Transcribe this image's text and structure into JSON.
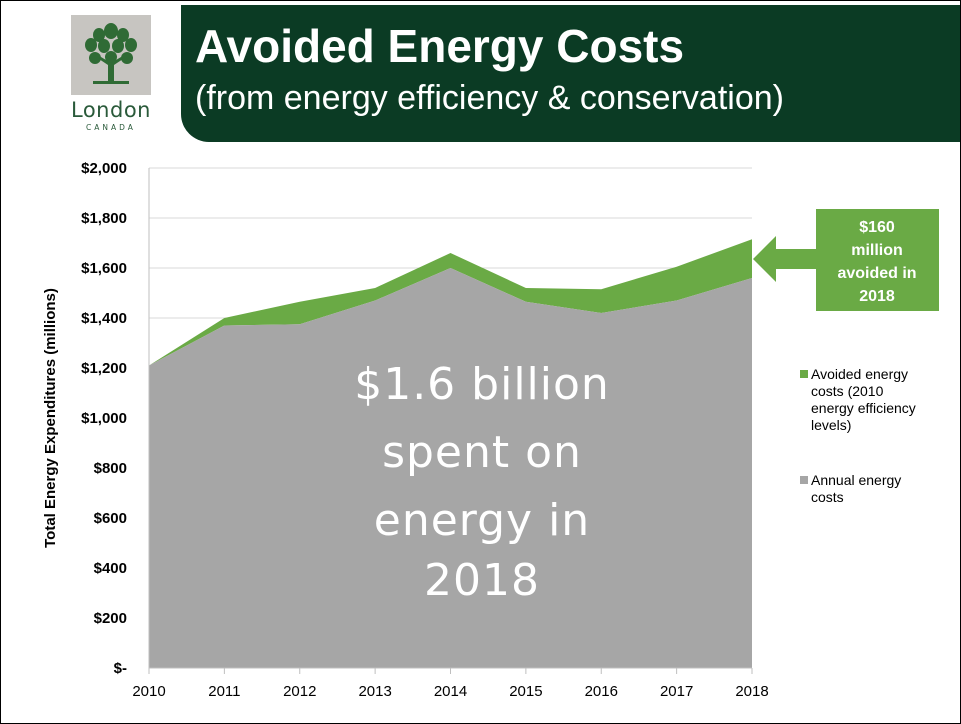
{
  "header": {
    "title": "Avoided Energy Costs",
    "subtitle": "(from energy efficiency & conservation)"
  },
  "logo": {
    "word": "London",
    "sub": "CANADA",
    "icon": "tree-icon",
    "box_color": "#c7c5c1",
    "tree_color": "#2f6b35"
  },
  "colors": {
    "header_bg": "#0b3b24",
    "annual": "#a6a6a6",
    "avoided": "#6aaa45",
    "grid": "#d9d9d9"
  },
  "chart_data": {
    "type": "area",
    "x": [
      2010,
      2011,
      2012,
      2013,
      2014,
      2015,
      2016,
      2017,
      2018
    ],
    "ylabel": "Total Energy Expenditures (millions)",
    "ylim": [
      0,
      2000
    ],
    "ytick_values": [
      0,
      200,
      400,
      600,
      800,
      1000,
      1200,
      1400,
      1600,
      1800,
      2000
    ],
    "ytick_labels": [
      "$-",
      "$200",
      "$400",
      "$600",
      "$800",
      "$1,000",
      "$1,200",
      "$1,400",
      "$1,600",
      "$1,800",
      "$2,000"
    ],
    "grid": true,
    "stacked": true,
    "legend_position": "right",
    "series": [
      {
        "name": "Annual energy costs",
        "legend_lines": [
          "Annual energy",
          "costs"
        ],
        "color": "#a6a6a6",
        "values": [
          1210,
          1370,
          1375,
          1470,
          1600,
          1465,
          1420,
          1470,
          1560
        ]
      },
      {
        "name": "Avoided energy costs (2010 energy efficiency levels)",
        "legend_lines": [
          "Avoided energy",
          "costs (2010",
          "energy efficiency",
          "levels)"
        ],
        "color": "#6aaa45",
        "values": [
          0,
          30,
          90,
          50,
          60,
          55,
          95,
          135,
          155
        ]
      }
    ],
    "overlay_text": [
      "$1.6 billion",
      "spent on",
      "energy in",
      "2018"
    ],
    "callout_text": [
      "$160",
      "million",
      "avoided in",
      "2018"
    ]
  }
}
